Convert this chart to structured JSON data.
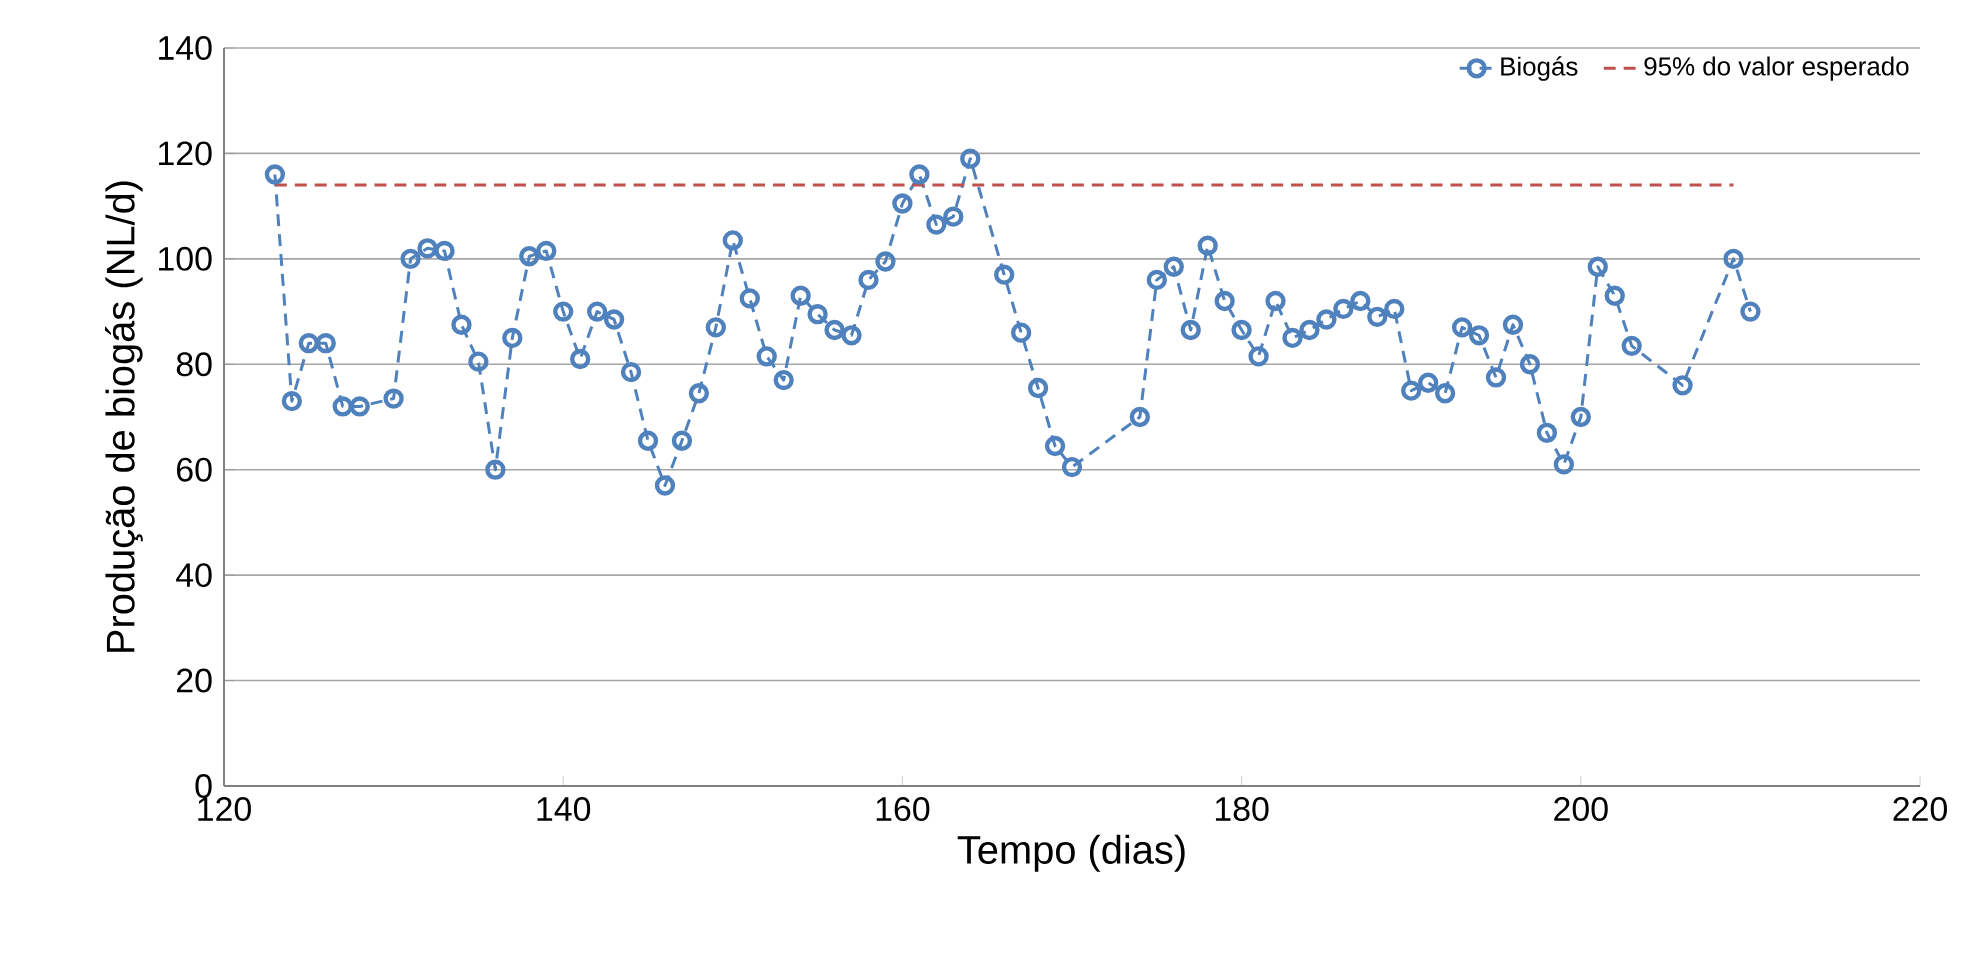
{
  "chart_data": {
    "type": "line",
    "xlabel": "Tempo (dias)",
    "ylabel": "Produção de biogás (NL/d)",
    "xlim": [
      120,
      220
    ],
    "xticks": [
      120,
      140,
      160,
      180,
      200,
      220
    ],
    "ylim": [
      0,
      140
    ],
    "yticks": [
      0,
      20,
      40,
      60,
      80,
      100,
      120,
      140
    ],
    "grid": "y",
    "legend": "top right",
    "series": [
      {
        "name": "Biogás",
        "color": "#4f81bd",
        "marker": "circle",
        "line_style": "dashed",
        "x": [
          123,
          124,
          125,
          126,
          127,
          128,
          130,
          131,
          132,
          133,
          134,
          135,
          136,
          137,
          138,
          139,
          140,
          141,
          142,
          143,
          144,
          145,
          146,
          147,
          148,
          149,
          150,
          151,
          152,
          153,
          154,
          155,
          156,
          157,
          158,
          159,
          160,
          161,
          162,
          163,
          164,
          166,
          167,
          168,
          169,
          170,
          174,
          175,
          176,
          177,
          178,
          179,
          180,
          181,
          182,
          183,
          184,
          185,
          186,
          187,
          188,
          189,
          190,
          191,
          192,
          193,
          194,
          195,
          196,
          197,
          198,
          199,
          200,
          201,
          202,
          203,
          206,
          209,
          210
        ],
        "values": [
          116,
          73,
          84,
          84,
          72,
          72,
          73.5,
          100,
          102,
          101.5,
          87.5,
          80.5,
          60,
          85,
          100.5,
          101.5,
          90,
          81,
          90,
          88.5,
          78.5,
          65.5,
          57,
          65.5,
          74.5,
          87,
          103.5,
          92.5,
          81.5,
          77,
          93,
          89.5,
          86.5,
          85.5,
          96,
          99.5,
          110.5,
          116,
          106.5,
          108,
          119,
          97,
          86,
          75.5,
          64.5,
          60.5,
          70,
          96,
          98.5,
          86.5,
          102.5,
          92,
          86.5,
          81.5,
          92,
          85,
          86.5,
          88.5,
          90.5,
          92,
          89,
          90.5,
          75,
          76.5,
          74.5,
          87,
          85.5,
          77.5,
          87.5,
          80,
          67,
          61,
          70,
          98.5,
          93,
          83.5,
          76,
          100,
          90
        ]
      },
      {
        "name": "95% do valor esperado",
        "color": "#c0504d",
        "marker": "none",
        "line_style": "dashed",
        "x": [
          123,
          209
        ],
        "values": [
          114,
          114
        ]
      }
    ]
  }
}
